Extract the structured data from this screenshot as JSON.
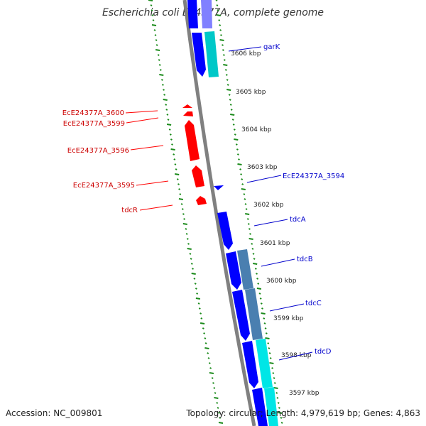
{
  "title": "Escherichia coli E24377A, complete genome",
  "footer": {
    "accession": "Accession: NC_009801",
    "topology": "Topology: circular; Length: 4,979,619 bp; Genes: 4,863"
  },
  "colors": {
    "backbone": "#808080",
    "forward_cds": "#0000ff",
    "reverse_cds": "#ff0000",
    "cog_teal": "#00c8c8",
    "cog_steel": "#4a7fb0",
    "cog_cyan": "#00e6e6",
    "cog_purple": "#8080ff",
    "tick": "#1a8a1a",
    "forward_label": "#0000cc",
    "reverse_label": "#cc0000",
    "ruler_label": "#222222"
  },
  "ruler_labels": [
    "3606 kbp",
    "3605 kbp",
    "3604 kbp",
    "3603 kbp",
    "3602 kbp",
    "3601 kbp",
    "3600 kbp",
    "3599 kbp",
    "3598 kbp",
    "3597 kbp"
  ],
  "forward_gene_labels": [
    "garK",
    "EcE24377A_3594",
    "tdcA",
    "tdcB",
    "tdcC",
    "tdcD"
  ],
  "reverse_gene_labels": [
    "EcE24377A_3600",
    "EcE24377A_3599",
    "EcE24377A_3596",
    "EcE24377A_3595",
    "tdcR"
  ]
}
